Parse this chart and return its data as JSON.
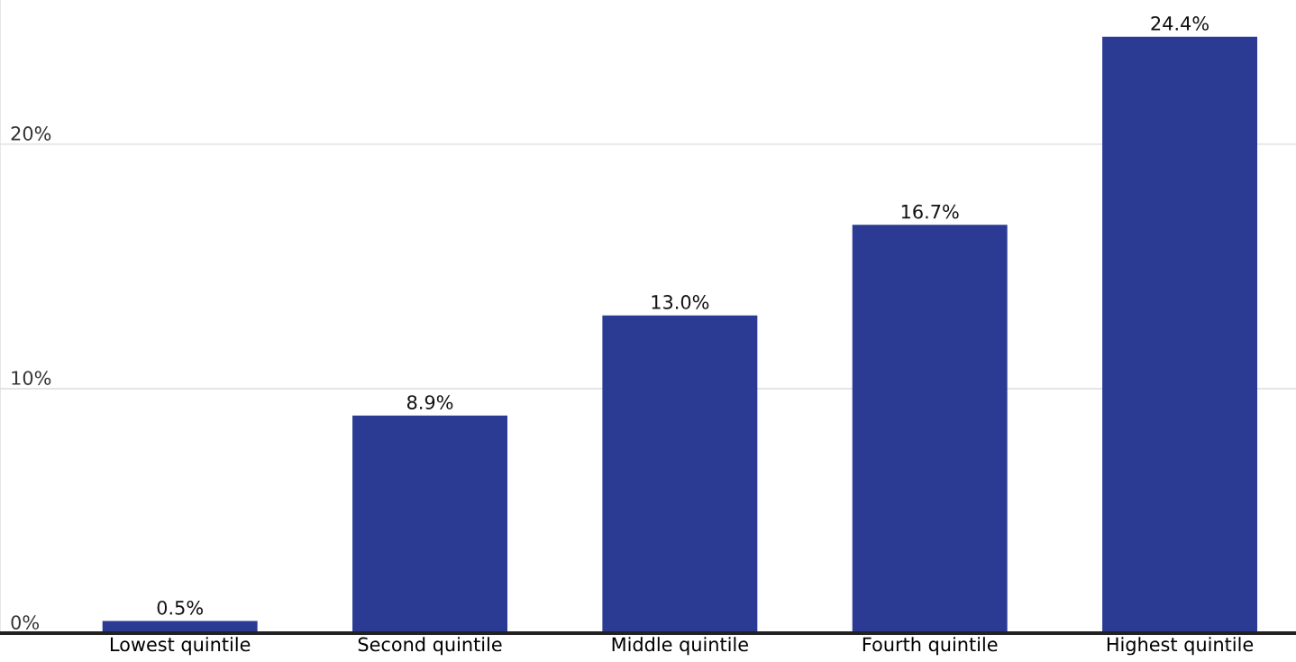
{
  "chart_data": {
    "type": "bar",
    "categories": [
      "Lowest quintile",
      "Second quintile",
      "Middle quintile",
      "Fourth quintile",
      "Highest quintile"
    ],
    "values": [
      0.5,
      8.9,
      13.0,
      16.7,
      24.4
    ],
    "value_labels": [
      "0.5%",
      "8.9%",
      "13.0%",
      "16.7%",
      "24.4%"
    ],
    "color": "#2b3b93",
    "ylim": [
      0,
      25.9
    ],
    "yticks": [
      {
        "value": 0,
        "label": "0%"
      },
      {
        "value": 10,
        "label": "10%"
      },
      {
        "value": 20,
        "label": "20%"
      }
    ],
    "grid": "y"
  }
}
